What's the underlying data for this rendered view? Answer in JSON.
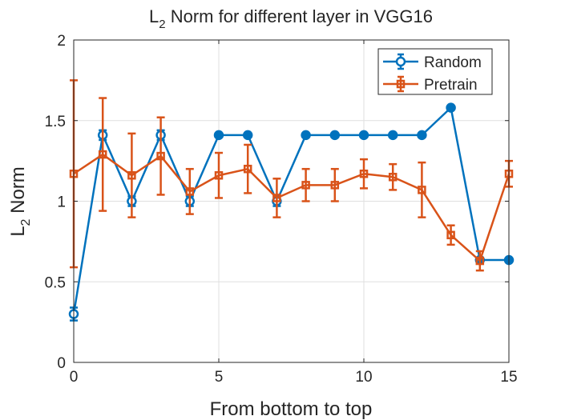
{
  "chart_data": {
    "type": "line",
    "title_main": "L",
    "title_sub": "2",
    "title_rest": " Norm for different layer in VGG16",
    "xlabel": "From bottom to top",
    "ylabel_main": "L",
    "ylabel_sub": "2",
    "ylabel_rest": " Norm",
    "xlim": [
      0,
      15
    ],
    "ylim": [
      0,
      2
    ],
    "xticks": [
      0,
      5,
      10,
      15
    ],
    "yticks": [
      0,
      0.5,
      1,
      1.5,
      2
    ],
    "xtick_labels": [
      "0",
      "5",
      "10",
      "15"
    ],
    "ytick_labels": [
      "0",
      "0.5",
      "1",
      "1.5",
      "2"
    ],
    "grid": true,
    "legend_position": "top-right",
    "x": [
      0,
      1,
      2,
      3,
      4,
      5,
      6,
      7,
      8,
      9,
      10,
      11,
      12,
      13,
      14,
      15
    ],
    "series": [
      {
        "name": "Random",
        "color": "#0072BD",
        "marker": "circle",
        "values": [
          0.3,
          1.41,
          1.0,
          1.41,
          1.0,
          1.41,
          1.41,
          1.0,
          1.41,
          1.41,
          1.41,
          1.41,
          1.41,
          1.58,
          0.635,
          0.635
        ],
        "errors": [
          0.04,
          0.03,
          0.03,
          0.03,
          0.03,
          0.0,
          0.0,
          0.03,
          0.0,
          0.0,
          0.0,
          0.0,
          0.0,
          0.0,
          0.0,
          0.0
        ]
      },
      {
        "name": "Pretrain",
        "color": "#D95319",
        "marker": "square",
        "values": [
          1.17,
          1.29,
          1.16,
          1.28,
          1.06,
          1.16,
          1.2,
          1.02,
          1.1,
          1.1,
          1.17,
          1.15,
          1.07,
          0.79,
          0.63,
          1.17
        ],
        "errors": [
          0.58,
          0.35,
          0.26,
          0.24,
          0.14,
          0.14,
          0.15,
          0.12,
          0.1,
          0.1,
          0.09,
          0.08,
          0.17,
          0.06,
          0.06,
          0.08
        ]
      }
    ]
  }
}
